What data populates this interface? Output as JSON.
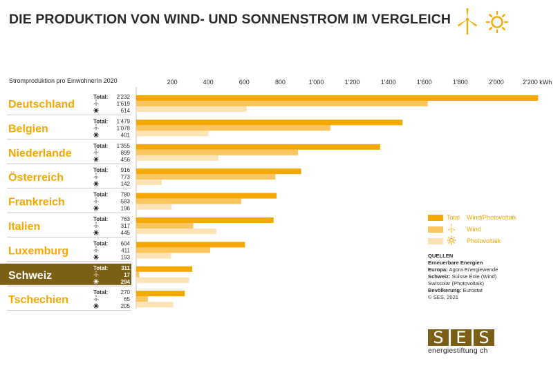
{
  "title": "DIE PRODUKTION VON WIND- UND SONNENSTROM IM VERGLEICH",
  "icons": [
    "wind-turbine-icon",
    "sun-icon"
  ],
  "colors": {
    "total": "#f5a800",
    "wind": "#f8c55e",
    "solar": "#fce3b5",
    "highlight": "#7b5f14",
    "country_text": "#f5a800"
  },
  "labels": {
    "total": "Total:"
  },
  "chart_data": {
    "type": "bar",
    "orientation": "horizontal",
    "title": "DIE PRODUKTION VON WIND- UND SONNENSTROM IM VERGLEICH",
    "subtitle": "Stromproduktion pro EinwohnerIn 2020",
    "unit": "kWh",
    "xlim": [
      0,
      2200
    ],
    "ticks": [
      200,
      400,
      600,
      800,
      1000,
      1200,
      1400,
      1600,
      1800,
      2000,
      2200
    ],
    "tick_labels": [
      "200",
      "400",
      "600",
      "800",
      "1'000",
      "1'200",
      "1'400",
      "1'600",
      "1'800",
      "2'000",
      "2'200 kWh"
    ],
    "highlighted": "Schweiz",
    "categories": [
      "Deutschland",
      "Belgien",
      "Niederlande",
      "Österreich",
      "Frankreich",
      "Italien",
      "Luxemburg",
      "Schweiz",
      "Tschechien"
    ],
    "series": [
      {
        "name": "Total",
        "values": [
          2232,
          1479,
          1355,
          916,
          780,
          763,
          604,
          311,
          270
        ],
        "labels": [
          "2'232",
          "1'479",
          "1'355",
          "916",
          "780",
          "763",
          "604",
          "311",
          "270"
        ]
      },
      {
        "name": "Wind",
        "values": [
          1619,
          1078,
          899,
          773,
          583,
          317,
          411,
          17,
          65
        ],
        "labels": [
          "1'619",
          "1'078",
          "899",
          "773",
          "583",
          "317",
          "411",
          "17",
          "65"
        ]
      },
      {
        "name": "Photovoltaik",
        "values": [
          614,
          401,
          456,
          142,
          196,
          445,
          193,
          294,
          205
        ],
        "labels": [
          "614",
          "401",
          "456",
          "142",
          "196",
          "445",
          "193",
          "294",
          "205"
        ]
      }
    ]
  },
  "legend": {
    "total_label": "Total",
    "total_desc": "Wind/Photovoltaik",
    "wind_label": "Wind",
    "solar_label": "Photovoltaik"
  },
  "sources": {
    "heading": "QUELLEN",
    "line1": "Erneuerbare Energien",
    "europa_label": "Europa:",
    "europa_value": "Agora Energiewende",
    "schweiz_label": "Schweiz:",
    "schweiz_value": "Suisse Éole (Wind)",
    "schweiz_value2": "Swissolar (Photovoltaik)",
    "bev_label": "Bevölkerung:",
    "bev_value": "Eurostat",
    "copyright": "© SES, 2021"
  },
  "logo": {
    "letters": [
      "S",
      "E",
      "S"
    ],
    "subtitle": "energiestiftung ch"
  }
}
